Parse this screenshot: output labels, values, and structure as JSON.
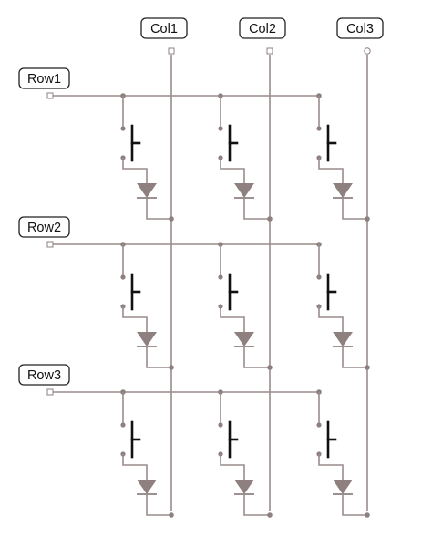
{
  "diagram": {
    "columns": [
      "Col1",
      "Col2",
      "Col3"
    ],
    "rows": [
      "Row1",
      "Row2",
      "Row3"
    ],
    "column_terminals": [
      "square",
      "square",
      "circle"
    ],
    "row_terminals": [
      "square",
      "square",
      "square"
    ]
  },
  "colors": {
    "wire": "#9a8c8c",
    "component": "#8f8080",
    "button": "#111111",
    "label_border": "#222222"
  }
}
